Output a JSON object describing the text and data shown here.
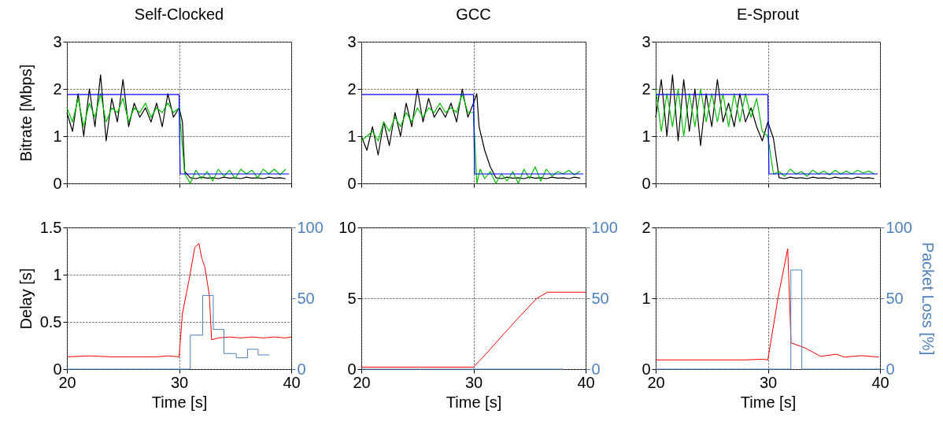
{
  "chart_data": [
    {
      "type": "line",
      "title": "Self-Clocked",
      "ylabel": "Bitrate [Mbps]",
      "xlim": [
        20,
        40
      ],
      "xticks": [
        20,
        30,
        40
      ],
      "ylim": [
        0,
        3
      ],
      "yticks": [
        0,
        1,
        2,
        3
      ],
      "grid": true,
      "tick_labels": "y",
      "series": [
        {
          "color": "#000000",
          "x": [
            20,
            20.5,
            21,
            21.5,
            22,
            22.5,
            23,
            23.5,
            24,
            24.5,
            25,
            25.5,
            26,
            26.5,
            27,
            27.5,
            28,
            28.5,
            29,
            29.5,
            30,
            30.3,
            30.5,
            31,
            31.5,
            32,
            32.5,
            33,
            33.5,
            34,
            34.5,
            35,
            35.5,
            36,
            36.5,
            37,
            37.5,
            38,
            38.5,
            39,
            39.5
          ],
          "values": [
            1.5,
            1.1,
            1.9,
            1.0,
            2.0,
            1.2,
            2.3,
            0.9,
            1.8,
            1.3,
            2.2,
            1.2,
            1.7,
            1.4,
            1.6,
            1.3,
            1.7,
            1.2,
            1.9,
            1.4,
            1.6,
            1.3,
            0.25,
            0.12,
            0.1,
            0.13,
            0.11,
            0.12,
            0.1,
            0.13,
            0.11,
            0.12,
            0.1,
            0.13,
            0.11,
            0.12,
            0.1,
            0.13,
            0.11,
            0.12,
            0.1
          ]
        },
        {
          "color": "#00c000",
          "x": [
            20,
            20.5,
            21,
            21.5,
            22,
            22.5,
            23,
            23.5,
            24,
            24.5,
            25,
            25.5,
            26,
            26.5,
            27,
            27.5,
            28,
            28.5,
            29,
            29.5,
            30,
            30.5,
            31,
            31.5,
            32,
            32.5,
            33,
            33.5,
            34,
            34.5,
            35,
            35.5,
            36,
            36.5,
            37,
            37.5,
            38,
            38.5,
            39,
            39.5
          ],
          "values": [
            1.6,
            1.3,
            1.8,
            1.2,
            1.7,
            1.4,
            1.9,
            1.3,
            1.6,
            1.5,
            1.8,
            1.3,
            1.6,
            1.5,
            1.7,
            1.4,
            1.6,
            1.5,
            1.7,
            1.5,
            1.6,
            0.2,
            0.0,
            0.28,
            0.1,
            0.25,
            0.05,
            0.3,
            0.15,
            0.28,
            0.1,
            0.3,
            0.2,
            0.28,
            0.12,
            0.3,
            0.2,
            0.3,
            0.18,
            0.3
          ]
        },
        {
          "color": "#0000ff",
          "x": [
            20,
            30,
            30.1,
            39.8
          ],
          "values": [
            1.88,
            1.88,
            0.2,
            0.2
          ]
        }
      ]
    },
    {
      "type": "line",
      "title": "GCC",
      "xlim": [
        20,
        40
      ],
      "xticks": [
        20,
        30,
        40
      ],
      "ylim": [
        0,
        3
      ],
      "yticks": [
        0,
        1,
        2,
        3
      ],
      "grid": true,
      "tick_labels": "y",
      "series": [
        {
          "color": "#000000",
          "x": [
            20,
            20.5,
            21,
            21.5,
            22,
            22.5,
            23,
            23.5,
            24,
            24.5,
            25,
            25.5,
            26,
            26.5,
            27,
            27.5,
            28,
            28.5,
            29,
            29.5,
            30,
            30.3,
            30.5,
            31,
            31.5,
            32,
            32.5,
            33,
            33.5,
            34,
            34.5,
            35,
            35.5,
            36,
            36.5,
            37,
            37.5,
            38,
            38.5,
            39,
            39.5
          ],
          "values": [
            1.0,
            0.7,
            1.2,
            0.6,
            1.3,
            0.8,
            1.5,
            1.0,
            1.7,
            1.2,
            2.0,
            1.3,
            1.8,
            1.4,
            1.6,
            1.4,
            1.7,
            1.3,
            2.0,
            1.4,
            1.7,
            1.9,
            1.2,
            0.7,
            0.35,
            0.12,
            0.1,
            0.13,
            0.11,
            0.12,
            0.1,
            0.13,
            0.11,
            0.12,
            0.1,
            0.13,
            0.11,
            0.12,
            0.1,
            0.13,
            0.11
          ]
        },
        {
          "color": "#00c000",
          "x": [
            20,
            20.5,
            21,
            21.5,
            22,
            22.5,
            23,
            23.5,
            24,
            24.5,
            25,
            25.5,
            26,
            26.5,
            27,
            27.5,
            28,
            28.5,
            29,
            29.5,
            30,
            30.3,
            30.6,
            31,
            31.5,
            32,
            32.5,
            33,
            33.5,
            34,
            34.5,
            35,
            35.5,
            36,
            36.5,
            37,
            37.5,
            38,
            38.5,
            39,
            39.5
          ],
          "values": [
            0.9,
            1.0,
            1.1,
            0.9,
            1.3,
            1.1,
            1.4,
            1.2,
            1.5,
            1.3,
            1.6,
            1.4,
            1.6,
            1.5,
            1.7,
            1.5,
            1.6,
            1.5,
            1.9,
            1.5,
            1.5,
            0.0,
            0.3,
            0.1,
            0.25,
            0.0,
            0.2,
            0.05,
            0.25,
            0.0,
            0.3,
            0.1,
            0.35,
            0.05,
            0.3,
            0.15,
            0.25,
            0.2,
            0.28,
            0.18,
            0.26
          ]
        },
        {
          "color": "#0000ff",
          "x": [
            20,
            30,
            30.1,
            39.8
          ],
          "values": [
            1.88,
            1.88,
            0.2,
            0.2
          ]
        }
      ]
    },
    {
      "type": "line",
      "title": "E-Sprout",
      "xlim": [
        20,
        40
      ],
      "xticks": [
        20,
        30,
        40
      ],
      "ylim": [
        0,
        3
      ],
      "yticks": [
        0,
        1,
        2,
        3
      ],
      "grid": true,
      "tick_labels": "y",
      "series": [
        {
          "color": "#000000",
          "x": [
            20,
            20.5,
            21,
            21.5,
            22,
            22.5,
            23,
            23.5,
            24,
            24.5,
            25,
            25.5,
            26,
            26.5,
            27,
            27.5,
            28,
            28.5,
            29,
            29.5,
            30,
            30.5,
            31,
            31.5,
            32,
            32.5,
            33,
            33.5,
            34,
            34.5,
            35,
            35.5,
            36,
            36.5,
            37,
            37.5,
            38,
            38.5,
            39,
            39.5
          ],
          "values": [
            1.4,
            2.2,
            1.0,
            2.3,
            0.9,
            2.2,
            1.1,
            2.0,
            0.8,
            1.9,
            1.2,
            2.2,
            1.3,
            1.7,
            1.2,
            1.9,
            1.3,
            1.6,
            1.2,
            0.9,
            1.3,
            0.95,
            0.12,
            0.1,
            0.13,
            0.11,
            0.12,
            0.1,
            0.13,
            0.11,
            0.12,
            0.1,
            0.13,
            0.11,
            0.12,
            0.1,
            0.13,
            0.11,
            0.12,
            0.1
          ]
        },
        {
          "color": "#00c000",
          "x": [
            20,
            20.5,
            21,
            21.5,
            22,
            22.5,
            23,
            23.5,
            24,
            24.5,
            25,
            25.5,
            26,
            26.5,
            27,
            27.5,
            28,
            28.5,
            29,
            29.5,
            30,
            30.5,
            31,
            31.5,
            32,
            32.5,
            33,
            33.5,
            34,
            34.5,
            35,
            35.5,
            36,
            36.5,
            37,
            37.5,
            38,
            38.5,
            39,
            39.5
          ],
          "values": [
            2.0,
            1.1,
            1.9,
            1.2,
            2.0,
            1.0,
            1.9,
            1.2,
            2.0,
            1.3,
            1.9,
            1.3,
            1.9,
            1.2,
            1.9,
            1.3,
            1.9,
            1.4,
            1.8,
            1.1,
            1.0,
            0.2,
            0.25,
            0.15,
            0.3,
            0.2,
            0.25,
            0.15,
            0.28,
            0.2,
            0.26,
            0.18,
            0.28,
            0.2,
            0.26,
            0.2,
            0.28,
            0.22,
            0.26,
            0.2
          ]
        },
        {
          "color": "#0000ff",
          "x": [
            20,
            30,
            30.1,
            39.8
          ],
          "values": [
            1.88,
            1.88,
            0.2,
            0.2
          ]
        }
      ]
    },
    {
      "type": "line",
      "ylabel": "Delay [s]",
      "xlabel": "Time [s]",
      "xlim": [
        20,
        40
      ],
      "xticks": [
        20,
        30,
        40
      ],
      "ylim": [
        0,
        1.5
      ],
      "yticks": [
        0,
        0.5,
        1,
        1.5
      ],
      "y2lim": [
        0,
        100
      ],
      "y2ticks": [
        0,
        50,
        100
      ],
      "grid": true,
      "series": [
        {
          "color": "#4f81bd",
          "axis": "y2",
          "x": [
            20,
            31,
            31,
            32.1,
            32.1,
            33.05,
            33.05,
            34,
            34,
            35.1,
            35.1,
            36.1,
            36.1,
            37.05,
            37.05,
            38.05
          ],
          "values": [
            0,
            0,
            24,
            24,
            52,
            52,
            28,
            28,
            11,
            11,
            8,
            8,
            14,
            14,
            10,
            10
          ]
        },
        {
          "color": "#ff0000",
          "x": [
            20,
            22,
            24,
            26,
            28,
            29,
            30,
            30.3,
            30.9,
            31.4,
            31.77,
            32.03,
            32.3,
            32.5,
            32.7,
            32.9,
            33.5,
            34.5,
            35.5,
            36.5,
            37.5,
            38.5,
            39.5,
            40
          ],
          "values": [
            0.13,
            0.14,
            0.13,
            0.13,
            0.13,
            0.14,
            0.13,
            0.59,
            0.95,
            1.29,
            1.33,
            1.17,
            1.08,
            0.93,
            0.78,
            0.31,
            0.33,
            0.34,
            0.33,
            0.34,
            0.33,
            0.34,
            0.33,
            0.34
          ]
        }
      ]
    },
    {
      "type": "line",
      "xlabel": "Time [s]",
      "xlim": [
        20,
        40
      ],
      "xticks": [
        20,
        30,
        40
      ],
      "ylim": [
        0,
        10
      ],
      "yticks": [
        0,
        5,
        10
      ],
      "y2lim": [
        0,
        100
      ],
      "y2ticks": [
        0,
        50,
        100
      ],
      "grid": true,
      "series": [
        {
          "color": "#4f81bd",
          "axis": "y2",
          "x": [
            20,
            38
          ],
          "values": [
            0,
            0
          ]
        },
        {
          "color": "#ff0000",
          "x": [
            20,
            25,
            30,
            31.14,
            32.8,
            34.2,
            35.65,
            36.6,
            40
          ],
          "values": [
            0.14,
            0.14,
            0.14,
            1.09,
            2.57,
            3.78,
            5.0,
            5.43,
            5.43
          ]
        }
      ]
    },
    {
      "type": "line",
      "xlabel": "Time [s]",
      "y2label": "Packet Loss [%]",
      "xlim": [
        20,
        40
      ],
      "xticks": [
        20,
        30,
        40
      ],
      "ylim": [
        0,
        2
      ],
      "yticks": [
        0,
        1,
        2
      ],
      "y2lim": [
        0,
        100
      ],
      "y2ticks": [
        0,
        50,
        100
      ],
      "grid": true,
      "series": [
        {
          "color": "#4f81bd",
          "axis": "y2",
          "x": [
            20,
            32.05,
            32.05,
            33.03,
            33.03,
            40
          ],
          "values": [
            0,
            0,
            70,
            70,
            0,
            0
          ]
        },
        {
          "color": "#ff0000",
          "x": [
            20,
            24,
            28,
            29.5,
            30,
            30.93,
            31.77,
            32.07,
            33.3,
            34.7,
            36.1,
            36.8,
            38.4,
            39.9
          ],
          "values": [
            0.13,
            0.13,
            0.13,
            0.14,
            0.13,
            1.03,
            1.7,
            0.37,
            0.3,
            0.18,
            0.21,
            0.17,
            0.19,
            0.17
          ]
        }
      ]
    }
  ]
}
